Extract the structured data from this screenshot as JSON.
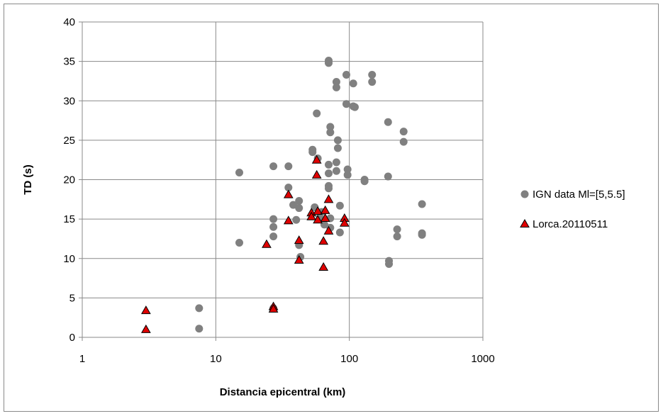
{
  "chart_data": {
    "type": "scatter",
    "xlabel": "Distancia epicentral (km)",
    "ylabel": "TD (s)",
    "xscale": "log",
    "xlim": [
      1,
      1000
    ],
    "ylim": [
      0,
      40
    ],
    "xticks": [
      1,
      10,
      100,
      1000
    ],
    "xtick_labels": [
      "1",
      "10",
      "100",
      "1000"
    ],
    "yticks": [
      0,
      5,
      10,
      15,
      20,
      25,
      30,
      35,
      40
    ],
    "ytick_labels": [
      "0",
      "5",
      "10",
      "15",
      "20",
      "25",
      "30",
      "35",
      "40"
    ],
    "grid": true,
    "legend_position": "right",
    "series": [
      {
        "name": "IGN data Ml=[5,5.5]",
        "marker": "circle",
        "color": "#808080",
        "points": [
          [
            7.5,
            3.7
          ],
          [
            7.5,
            1.1
          ],
          [
            15,
            12.0
          ],
          [
            15,
            20.9
          ],
          [
            27,
            21.7
          ],
          [
            27,
            15.0
          ],
          [
            27,
            14.0
          ],
          [
            27,
            12.8
          ],
          [
            27,
            3.7
          ],
          [
            35,
            21.7
          ],
          [
            35,
            19.0
          ],
          [
            38,
            16.8
          ],
          [
            40,
            14.9
          ],
          [
            42,
            17.3
          ],
          [
            42,
            16.4
          ],
          [
            42,
            11.7
          ],
          [
            43,
            10.2
          ],
          [
            53,
            23.8
          ],
          [
            53,
            23.5
          ],
          [
            55,
            16.5
          ],
          [
            57,
            28.4
          ],
          [
            58,
            22.7
          ],
          [
            60,
            15.2
          ],
          [
            62,
            15.9
          ],
          [
            65,
            14.3
          ],
          [
            70,
            35.1
          ],
          [
            70,
            34.8
          ],
          [
            70,
            21.9
          ],
          [
            70,
            20.8
          ],
          [
            70,
            19.2
          ],
          [
            70,
            18.9
          ],
          [
            72,
            26.7
          ],
          [
            72,
            26.0
          ],
          [
            72,
            15.1
          ],
          [
            72,
            13.9
          ],
          [
            80,
            32.4
          ],
          [
            80,
            31.7
          ],
          [
            80,
            22.2
          ],
          [
            80,
            21.1
          ],
          [
            82,
            25.0
          ],
          [
            82,
            24.0
          ],
          [
            85,
            16.7
          ],
          [
            85,
            13.3
          ],
          [
            95,
            33.3
          ],
          [
            95,
            29.6
          ],
          [
            97,
            21.3
          ],
          [
            97,
            20.6
          ],
          [
            107,
            32.2
          ],
          [
            107,
            29.3
          ],
          [
            110,
            29.2
          ],
          [
            130,
            20.0
          ],
          [
            130,
            19.8
          ],
          [
            148,
            33.3
          ],
          [
            148,
            32.4
          ],
          [
            195,
            27.3
          ],
          [
            195,
            20.4
          ],
          [
            198,
            9.7
          ],
          [
            198,
            9.3
          ],
          [
            228,
            13.7
          ],
          [
            228,
            12.8
          ],
          [
            255,
            26.1
          ],
          [
            255,
            24.8
          ],
          [
            350,
            16.9
          ],
          [
            350,
            13.2
          ],
          [
            350,
            13.0
          ]
        ]
      },
      {
        "name": "Lorca.20110511",
        "marker": "triangle",
        "color": "#e00000",
        "points": [
          [
            3,
            3.4
          ],
          [
            3,
            1.0
          ],
          [
            24,
            11.8
          ],
          [
            27,
            3.9
          ],
          [
            27,
            3.6
          ],
          [
            35,
            18.1
          ],
          [
            35,
            14.8
          ],
          [
            42,
            12.3
          ],
          [
            42,
            9.8
          ],
          [
            52,
            15.8
          ],
          [
            52,
            15.3
          ],
          [
            57,
            22.5
          ],
          [
            57,
            20.6
          ],
          [
            58,
            16.0
          ],
          [
            58,
            14.9
          ],
          [
            64,
            12.2
          ],
          [
            64,
            8.9
          ],
          [
            66,
            16.1
          ],
          [
            66,
            15.1
          ],
          [
            70,
            17.5
          ],
          [
            70,
            13.5
          ],
          [
            92,
            15.1
          ],
          [
            92,
            14.5
          ]
        ]
      }
    ]
  }
}
